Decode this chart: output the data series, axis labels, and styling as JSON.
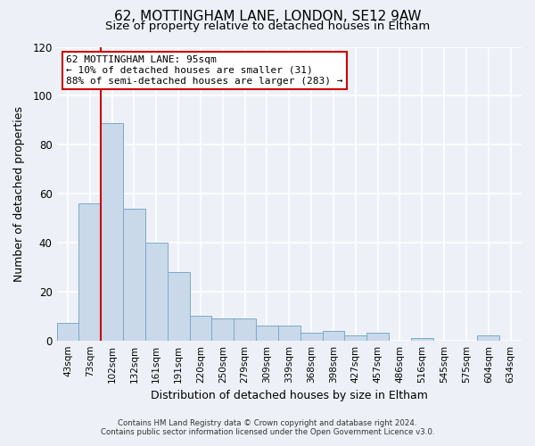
{
  "title": "62, MOTTINGHAM LANE, LONDON, SE12 9AW",
  "subtitle": "Size of property relative to detached houses in Eltham",
  "xlabel": "Distribution of detached houses by size in Eltham",
  "ylabel": "Number of detached properties",
  "bar_labels": [
    "43sqm",
    "73sqm",
    "102sqm",
    "132sqm",
    "161sqm",
    "191sqm",
    "220sqm",
    "250sqm",
    "279sqm",
    "309sqm",
    "339sqm",
    "368sqm",
    "398sqm",
    "427sqm",
    "457sqm",
    "486sqm",
    "516sqm",
    "545sqm",
    "575sqm",
    "604sqm",
    "634sqm"
  ],
  "bar_heights": [
    7,
    56,
    89,
    54,
    40,
    28,
    10,
    9,
    9,
    6,
    6,
    3,
    4,
    2,
    3,
    0,
    1,
    0,
    0,
    2,
    0
  ],
  "bar_color": "#c9d9ea",
  "bar_edge_color": "#7aaac8",
  "vline_color": "#cc0000",
  "annotation_title": "62 MOTTINGHAM LANE: 95sqm",
  "annotation_line1": "← 10% of detached houses are smaller (31)",
  "annotation_line2": "88% of semi-detached houses are larger (283) →",
  "annotation_box_color": "#ffffff",
  "annotation_box_edge": "#cc0000",
  "ylim": [
    0,
    120
  ],
  "yticks": [
    0,
    20,
    40,
    60,
    80,
    100,
    120
  ],
  "footnote1": "Contains HM Land Registry data © Crown copyright and database right 2024.",
  "footnote2": "Contains public sector information licensed under the Open Government Licence v3.0.",
  "background_color": "#edf1f7",
  "plot_background": "#edf1f7",
  "grid_color": "#ffffff",
  "title_fontsize": 11,
  "subtitle_fontsize": 9.5
}
